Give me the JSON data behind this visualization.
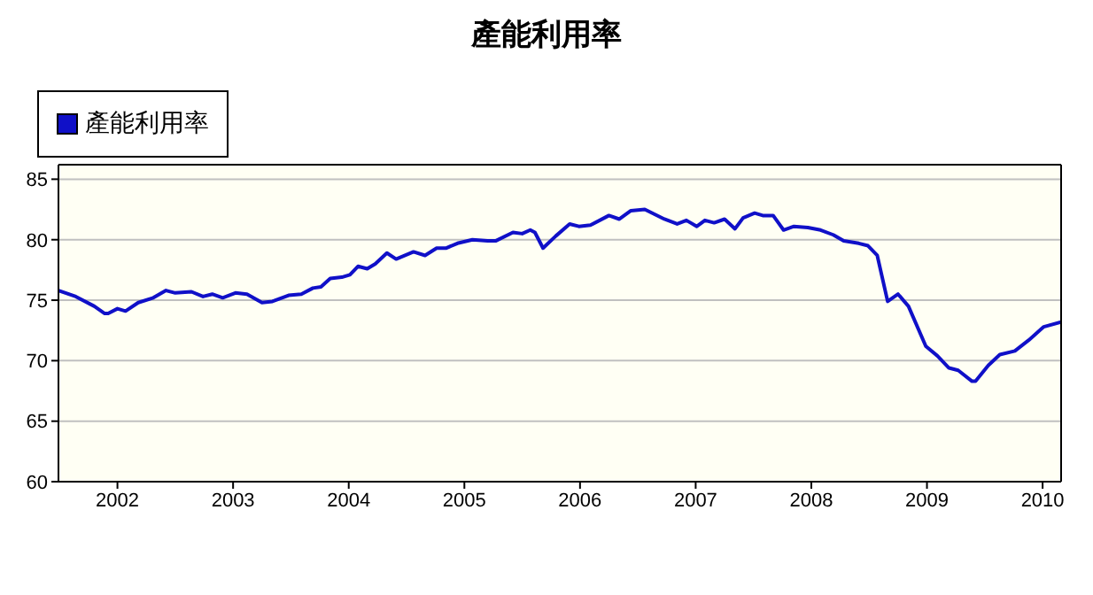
{
  "chart_data": {
    "type": "line",
    "title": "產能利用率",
    "x": [
      2001.49,
      2001.64,
      2001.8,
      2001.89,
      2001.92,
      2002.0,
      2002.07,
      2002.18,
      2002.31,
      2002.42,
      2002.5,
      2002.64,
      2002.74,
      2002.82,
      2002.91,
      2003.02,
      2003.12,
      2003.25,
      2003.34,
      2003.48,
      2003.59,
      2003.69,
      2003.76,
      2003.84,
      2003.94,
      2004.01,
      2004.08,
      2004.16,
      2004.23,
      2004.33,
      2004.41,
      2004.56,
      2004.66,
      2004.76,
      2004.84,
      2004.94,
      2005.07,
      2005.2,
      2005.27,
      2005.42,
      2005.5,
      2005.57,
      2005.61,
      2005.68,
      2005.79,
      2005.91,
      2005.99,
      2006.09,
      2006.25,
      2006.34,
      2006.44,
      2006.56,
      2006.73,
      2006.84,
      2006.92,
      2007.01,
      2007.08,
      2007.16,
      2007.25,
      2007.34,
      2007.41,
      2007.51,
      2007.58,
      2007.67,
      2007.76,
      2007.85,
      2007.97,
      2008.08,
      2008.19,
      2008.28,
      2008.41,
      2008.49,
      2008.57,
      2008.66,
      2008.75,
      2008.84,
      2008.99,
      2009.09,
      2009.19,
      2009.27,
      2009.39,
      2009.42,
      2009.53,
      2009.63,
      2009.76,
      2009.88,
      2010.01,
      2010.16
    ],
    "series": [
      {
        "name": "產能利用率",
        "color": "#1010c8",
        "values": [
          75.8,
          75.3,
          74.5,
          73.9,
          73.9,
          74.3,
          74.1,
          74.8,
          75.2,
          75.8,
          75.6,
          75.7,
          75.3,
          75.5,
          75.2,
          75.6,
          75.5,
          74.8,
          74.9,
          75.4,
          75.5,
          76.0,
          76.1,
          76.8,
          76.9,
          77.1,
          77.8,
          77.6,
          78.0,
          78.9,
          78.4,
          79.0,
          78.7,
          79.3,
          79.3,
          79.7,
          80.0,
          79.9,
          79.9,
          80.6,
          80.5,
          80.8,
          80.6,
          79.3,
          80.3,
          81.3,
          81.1,
          81.2,
          82.0,
          81.7,
          82.4,
          82.5,
          81.7,
          81.3,
          81.6,
          81.1,
          81.6,
          81.4,
          81.7,
          80.9,
          81.8,
          82.2,
          82.0,
          82.0,
          80.8,
          81.1,
          81.0,
          80.8,
          80.4,
          79.9,
          79.7,
          79.5,
          78.7,
          74.9,
          75.5,
          74.5,
          71.2,
          70.4,
          69.4,
          69.2,
          68.3,
          68.3,
          69.6,
          70.5,
          70.8,
          71.7,
          72.8,
          73.2
        ]
      }
    ],
    "xlim": [
      2001.49,
      2010.16
    ],
    "xticks": [
      2002,
      2003,
      2004,
      2005,
      2006,
      2007,
      2008,
      2009,
      2010
    ],
    "ylim": [
      60,
      86.2
    ],
    "yticks": [
      60,
      65,
      70,
      75,
      80,
      85
    ],
    "grid": "y",
    "legend": "top left",
    "marker": "none",
    "line_style": "solid"
  }
}
